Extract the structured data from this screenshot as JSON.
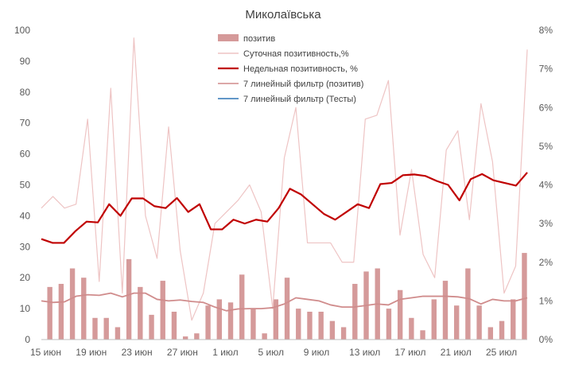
{
  "chart_data": {
    "type": "bar+line",
    "title": "Миколаївська",
    "x_tick_labels": [
      "15 июн",
      "19 июн",
      "23 июн",
      "27 июн",
      "1 июл",
      "5 июл",
      "9 июл",
      "13 июл",
      "17 июл",
      "21 июл",
      "25 июл"
    ],
    "y_left": {
      "min": 0,
      "max": 100,
      "step": 10,
      "ticks": [
        "0",
        "10",
        "20",
        "30",
        "40",
        "50",
        "60",
        "70",
        "80",
        "90",
        "100"
      ]
    },
    "y_right": {
      "min": 0,
      "max": 8,
      "step": 1,
      "ticks": [
        "0%",
        "1%",
        "2%",
        "3%",
        "4%",
        "5%",
        "6%",
        "7%",
        "8%"
      ]
    },
    "legend": [
      {
        "name": "позитив",
        "kind": "bar",
        "color": "#d59a9a"
      },
      {
        "name": "Суточная позитивность,%",
        "kind": "line",
        "color": "#eec4c4"
      },
      {
        "name": "Недельная позитивность, %",
        "kind": "line",
        "color": "#c00000"
      },
      {
        "name": "7 линейный фильтр (позитив)",
        "kind": "line",
        "color": "#d08c8c"
      },
      {
        "name": "7 линейный фильтр (Тесты)",
        "kind": "line",
        "color": "#2e75b6"
      }
    ],
    "series": [
      {
        "name": "позитив",
        "axis": "left",
        "values": [
          0,
          17,
          0,
          18,
          0,
          23,
          0,
          20,
          0,
          7,
          0,
          7,
          0,
          4,
          0,
          26,
          0,
          17,
          0,
          8,
          0,
          19,
          0,
          9,
          0,
          1,
          0,
          2,
          0,
          11,
          0,
          13,
          0,
          12,
          0,
          21,
          0,
          10,
          0,
          2,
          0,
          13,
          0,
          20,
          0,
          10,
          0,
          9,
          0,
          9,
          0,
          6,
          0,
          4,
          0,
          18,
          0,
          22,
          0,
          23,
          0,
          10,
          0,
          16,
          0,
          7,
          0,
          3,
          0,
          13,
          0,
          19,
          0,
          11,
          0,
          23,
          0,
          11,
          0,
          4,
          0,
          6,
          0,
          13,
          0,
          28
        ]
      },
      {
        "name": "Суточная позитивность,%",
        "axis": "right",
        "values": [
          3.4,
          3.7,
          3.4,
          3.5,
          5.7,
          1.5,
          6.5,
          1.2,
          7.8,
          3.2,
          2.1,
          5.5,
          2.3,
          0.5,
          1.2,
          3.0,
          3.3,
          3.6,
          4.0,
          3.3,
          0.8,
          4.7,
          6.0,
          2.5,
          2.5,
          2.5,
          2.0,
          2.0,
          5.7,
          5.8,
          6.7,
          2.7,
          4.4,
          2.2,
          1.6,
          4.9,
          5.4,
          3.1,
          6.1,
          4.6,
          1.2,
          1.9,
          7.5
        ]
      },
      {
        "name": "Недельная позитивность, %",
        "axis": "right",
        "values": [
          2.6,
          2.5,
          2.5,
          2.8,
          3.05,
          3.03,
          3.5,
          3.2,
          3.65,
          3.65,
          3.45,
          3.4,
          3.66,
          3.3,
          3.5,
          2.85,
          2.85,
          3.1,
          3.0,
          3.1,
          3.05,
          3.4,
          3.9,
          3.75,
          3.5,
          3.25,
          3.1,
          3.3,
          3.5,
          3.4,
          4.02,
          4.05,
          4.25,
          4.27,
          4.23,
          4.1,
          4.0,
          3.6,
          4.15,
          4.28,
          4.12,
          4.05,
          3.98,
          4.32
        ]
      },
      {
        "name": "7 линейный фильтр (позитив)",
        "axis": "left",
        "values": [
          12.5,
          12,
          12.2,
          14,
          14.5,
          14.3,
          15,
          13.8,
          15,
          15,
          13,
          12.5,
          12.8,
          12.3,
          12,
          10.5,
          9.3,
          9.9,
          10,
          10,
          10.3,
          11.5,
          13.5,
          13,
          12.5,
          11.2,
          10.5,
          10.5,
          11,
          11.5,
          11.2,
          13,
          13.5,
          14,
          14,
          14,
          13.8,
          13.2,
          11.5,
          13,
          12.5,
          12.5,
          13.5
        ]
      },
      {
        "name": "7 линейный фильтр (Тесты)",
        "axis": "left",
        "values": []
      }
    ]
  }
}
